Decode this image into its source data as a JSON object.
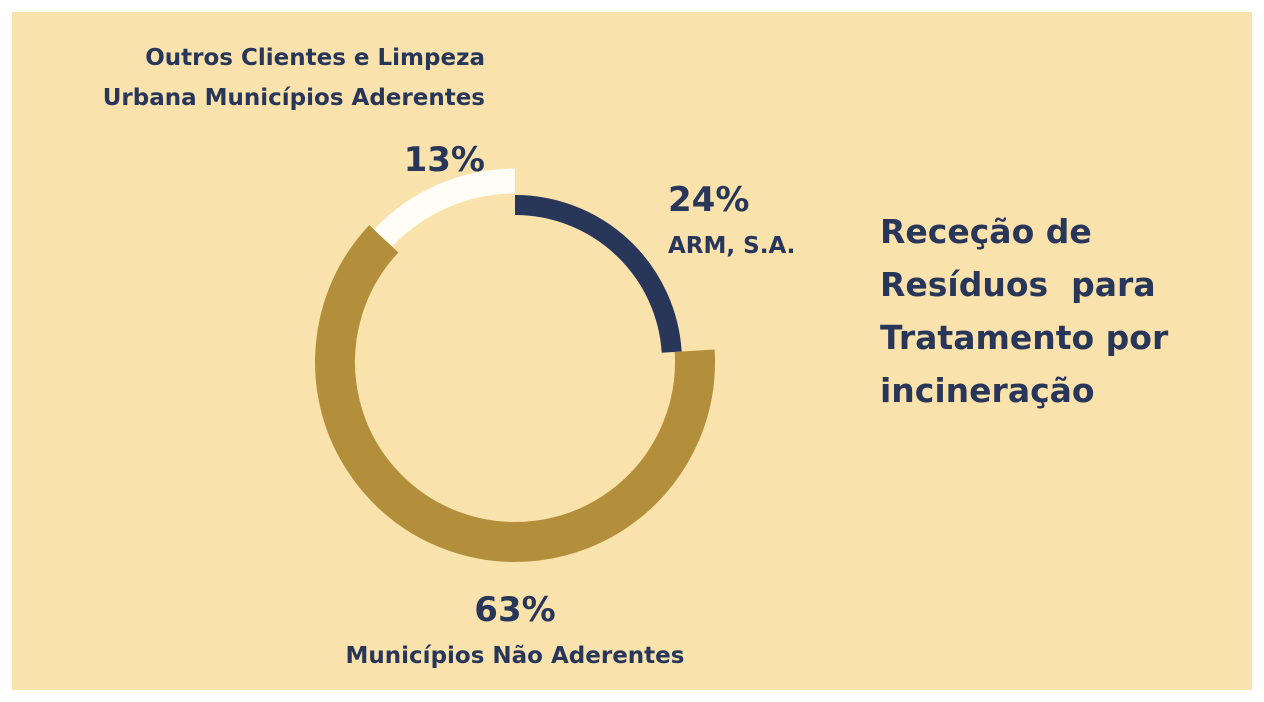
{
  "chart_data": {
    "type": "donut",
    "title": "Receção de Resíduos  para Tratamento por incineração",
    "categories": [
      "ARM, S.A.",
      "Municípios Não Aderentes",
      "Outros Clientes e Limpeza Urbana Municípios Aderentes"
    ],
    "values": [
      24,
      63,
      13
    ],
    "value_labels": [
      "24%",
      "63%",
      "13%"
    ],
    "colors": [
      "#28365a",
      "#b48f3b",
      "#fffdf6"
    ]
  }
}
